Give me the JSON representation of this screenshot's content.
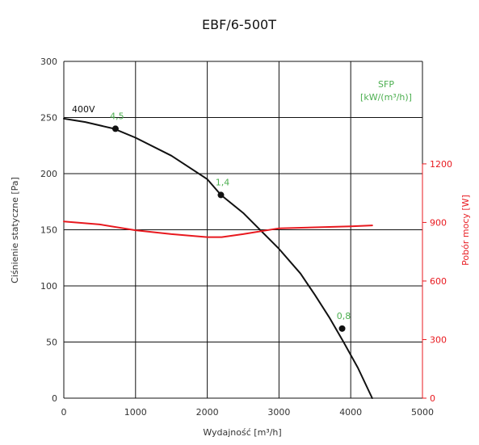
{
  "chart_data": {
    "type": "line",
    "title": "EBF/6-500T",
    "xlabel": "Wydajność [m³/h]",
    "ylabel": "Ciśnienie statyczne [Pa]",
    "y2label": "Pobór mocy [W]",
    "xlim": [
      0,
      5000
    ],
    "ylim": [
      0,
      300
    ],
    "y2lim": [
      0,
      1725
    ],
    "x_ticks": [
      "0",
      "1000",
      "2000",
      "3000",
      "4000",
      "5000"
    ],
    "x_tick_values": [
      0,
      1000,
      2000,
      3000,
      4000,
      5000
    ],
    "y_ticks": [
      "0",
      "50",
      "100",
      "150",
      "200",
      "250",
      "300"
    ],
    "y_tick_values": [
      0,
      50,
      100,
      150,
      200,
      250,
      300
    ],
    "y2_ticks": [
      "0",
      "300",
      "600",
      "900",
      "1200"
    ],
    "y2_tick_values": [
      0,
      300,
      600,
      900,
      1200
    ],
    "grid": true,
    "sfp_label_line1": "SFP",
    "sfp_label_line2": "[kW/(m³/h)]",
    "colors": {
      "pressure": "#111111",
      "power": "#e8191f",
      "sfp": "#4caf50",
      "grid": "#111111",
      "axis_text": "#333333",
      "power_axis": "#e8191f"
    },
    "series": [
      {
        "name": "400V",
        "axis": "left",
        "x": [
          0,
          300,
          700,
          1000,
          1500,
          2000,
          2190,
          2500,
          3000,
          3300,
          3500,
          3700,
          3900,
          4100,
          4300
        ],
        "y": [
          249,
          246,
          240,
          232,
          216,
          195,
          181,
          165,
          133,
          111,
          92,
          72,
          50,
          27,
          0
        ]
      },
      {
        "name": "",
        "axis": "right",
        "x": [
          0,
          500,
          1000,
          1500,
          2000,
          2200,
          2500,
          3000,
          3500,
          4000,
          4300
        ],
        "y": [
          905,
          890,
          860,
          840,
          825,
          825,
          840,
          870,
          875,
          880,
          885
        ]
      }
    ],
    "sfp_points": [
      {
        "x": 720,
        "y": 240,
        "label": "4,5"
      },
      {
        "x": 2190,
        "y": 181,
        "label": "1,4"
      },
      {
        "x": 3880,
        "y": 62,
        "label": "0,8"
      }
    ]
  }
}
